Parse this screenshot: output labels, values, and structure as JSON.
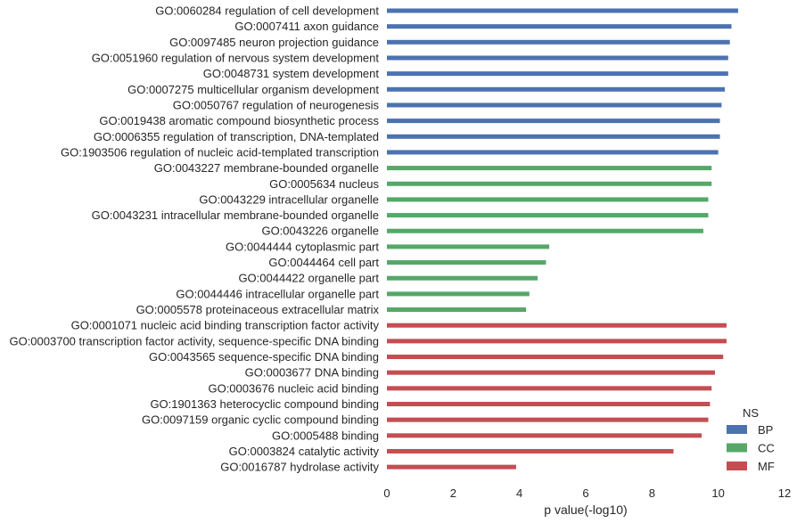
{
  "chart_data": {
    "type": "bar",
    "orientation": "horizontal",
    "xlabel": "p value(-log10)",
    "ylabel": "",
    "xlim": [
      0,
      12
    ],
    "x_ticks": [
      "0",
      "2",
      "4",
      "6",
      "8",
      "10",
      "12"
    ],
    "grid": false,
    "legend": {
      "title": "NS",
      "position": "lower-right",
      "entries": [
        {
          "label": "BP",
          "color": "#4c72b0"
        },
        {
          "label": "CC",
          "color": "#55a868"
        },
        {
          "label": "MF",
          "color": "#c44e52"
        }
      ]
    },
    "categories": [
      {
        "label": "GO:0060284 regulation of cell development",
        "value": 10.6,
        "ns": "BP"
      },
      {
        "label": "GO:0007411 axon guidance",
        "value": 10.4,
        "ns": "BP"
      },
      {
        "label": "GO:0097485 neuron projection guidance",
        "value": 10.35,
        "ns": "BP"
      },
      {
        "label": "GO:0051960 regulation of nervous system development",
        "value": 10.3,
        "ns": "BP"
      },
      {
        "label": "GO:0048731 system development",
        "value": 10.3,
        "ns": "BP"
      },
      {
        "label": "GO:0007275 multicellular organism development",
        "value": 10.2,
        "ns": "BP"
      },
      {
        "label": "GO:0050767 regulation of neurogenesis",
        "value": 10.1,
        "ns": "BP"
      },
      {
        "label": "GO:0019438 aromatic compound biosynthetic process",
        "value": 10.05,
        "ns": "BP"
      },
      {
        "label": "GO:0006355 regulation of transcription, DNA-templated",
        "value": 10.05,
        "ns": "BP"
      },
      {
        "label": "GO:1903506 regulation of nucleic acid-templated transcription",
        "value": 10.0,
        "ns": "BP"
      },
      {
        "label": "GO:0043227 membrane-bounded organelle",
        "value": 9.8,
        "ns": "CC"
      },
      {
        "label": "GO:0005634 nucleus",
        "value": 9.8,
        "ns": "CC"
      },
      {
        "label": "GO:0043229 intracellular organelle",
        "value": 9.7,
        "ns": "CC"
      },
      {
        "label": "GO:0043231 intracellular membrane-bounded organelle",
        "value": 9.7,
        "ns": "CC"
      },
      {
        "label": "GO:0043226 organelle",
        "value": 9.55,
        "ns": "CC"
      },
      {
        "label": "GO:0044444 cytoplasmic part",
        "value": 4.9,
        "ns": "CC"
      },
      {
        "label": "GO:0044464 cell part",
        "value": 4.8,
        "ns": "CC"
      },
      {
        "label": "GO:0044422 organelle part",
        "value": 4.55,
        "ns": "CC"
      },
      {
        "label": "GO:0044446 intracellular organelle part",
        "value": 4.3,
        "ns": "CC"
      },
      {
        "label": "GO:0005578 proteinaceous extracellular matrix",
        "value": 4.2,
        "ns": "CC"
      },
      {
        "label": "GO:0001071 nucleic acid binding transcription factor activity",
        "value": 10.25,
        "ns": "MF"
      },
      {
        "label": "GO:0003700 transcription factor activity, sequence-specific DNA binding",
        "value": 10.25,
        "ns": "MF"
      },
      {
        "label": "GO:0043565 sequence-specific DNA binding",
        "value": 10.15,
        "ns": "MF"
      },
      {
        "label": "GO:0003677 DNA binding",
        "value": 9.9,
        "ns": "MF"
      },
      {
        "label": "GO:0003676 nucleic acid binding",
        "value": 9.8,
        "ns": "MF"
      },
      {
        "label": "GO:1901363 heterocyclic compound binding",
        "value": 9.75,
        "ns": "MF"
      },
      {
        "label": "GO:0097159 organic cyclic compound binding",
        "value": 9.7,
        "ns": "MF"
      },
      {
        "label": "GO:0005488 binding",
        "value": 9.5,
        "ns": "MF"
      },
      {
        "label": "GO:0003824 catalytic activity",
        "value": 8.65,
        "ns": "MF"
      },
      {
        "label": "GO:0016787 hydrolase activity",
        "value": 3.9,
        "ns": "MF"
      }
    ]
  }
}
